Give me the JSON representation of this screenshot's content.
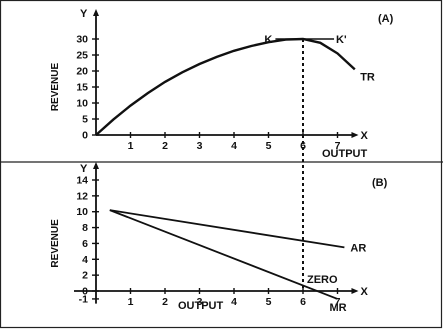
{
  "chart_data": [
    {
      "type": "line",
      "panel": "(A)",
      "xlabel": "OUTPUT",
      "ylabel": "REVENUE",
      "x_axis_letter": "X",
      "y_axis_letter": "Y",
      "xlim": [
        0,
        7.6
      ],
      "ylim": [
        0,
        35
      ],
      "x_ticks": [
        "1",
        "2",
        "3",
        "4",
        "5",
        "6",
        "7"
      ],
      "y_ticks": [
        "0",
        "5",
        "10",
        "15",
        "20",
        "25",
        "30"
      ],
      "series": [
        {
          "name": "TR",
          "x": [
            0,
            0.5,
            1,
            1.5,
            2,
            2.5,
            3,
            3.5,
            4,
            4.5,
            5,
            5.5,
            6,
            6.5,
            7,
            7.5
          ],
          "y": [
            0,
            4.8,
            9.2,
            13.1,
            16.6,
            19.6,
            22.2,
            24.4,
            26.3,
            27.8,
            29.0,
            29.8,
            30.0,
            28.8,
            25.5,
            20.5
          ]
        }
      ],
      "max_line": {
        "y": 30,
        "x_from": 5.2,
        "x_to": 6.9,
        "left_label": "K",
        "right_label": "K'"
      },
      "max_point_x": 6
    },
    {
      "type": "line",
      "panel": "(B)",
      "xlabel": "OUTPUT",
      "ylabel": "REVENUE",
      "x_axis_letter": "X",
      "y_axis_letter": "Y",
      "xlim": [
        0,
        7.6
      ],
      "ylim": [
        -1.5,
        15
      ],
      "x_ticks": [
        "1",
        "2",
        "3",
        "4",
        "5",
        "6",
        "7"
      ],
      "y_ticks": [
        "-1",
        "0",
        "2",
        "4",
        "6",
        "8",
        "10",
        "12",
        "14"
      ],
      "series": [
        {
          "name": "AR",
          "x": [
            0.4,
            7.2
          ],
          "y": [
            10.2,
            5.5
          ]
        },
        {
          "name": "MR",
          "x": [
            0.4,
            7.0
          ],
          "y": [
            10.2,
            -1.0
          ]
        }
      ],
      "annotation": {
        "text": "ZERO",
        "x": 6,
        "y": 0
      }
    }
  ]
}
